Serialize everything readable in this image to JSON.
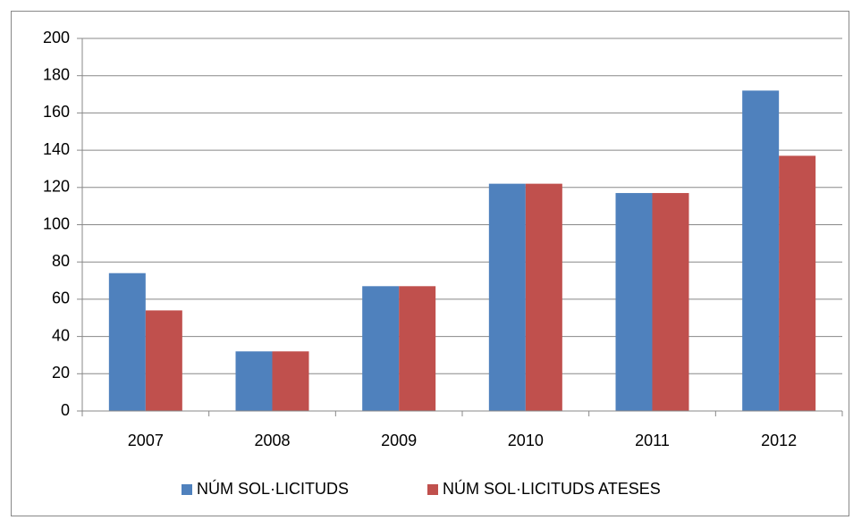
{
  "chart_data": {
    "type": "bar",
    "categories": [
      "2007",
      "2008",
      "2009",
      "2010",
      "2011",
      "2012"
    ],
    "series": [
      {
        "name": "NÚM SOL·LICITUDS",
        "color": "#4f81bd",
        "values": [
          74,
          32,
          67,
          122,
          117,
          172
        ]
      },
      {
        "name": "NÚM SOL·LICITUDS ATESES",
        "color": "#c0504d",
        "values": [
          54,
          32,
          67,
          122,
          117,
          137
        ]
      }
    ],
    "ylim": [
      0,
      200
    ],
    "yticks": [
      0,
      20,
      40,
      60,
      80,
      100,
      120,
      140,
      160,
      180,
      200
    ],
    "grid": true,
    "legend": "bottom"
  }
}
